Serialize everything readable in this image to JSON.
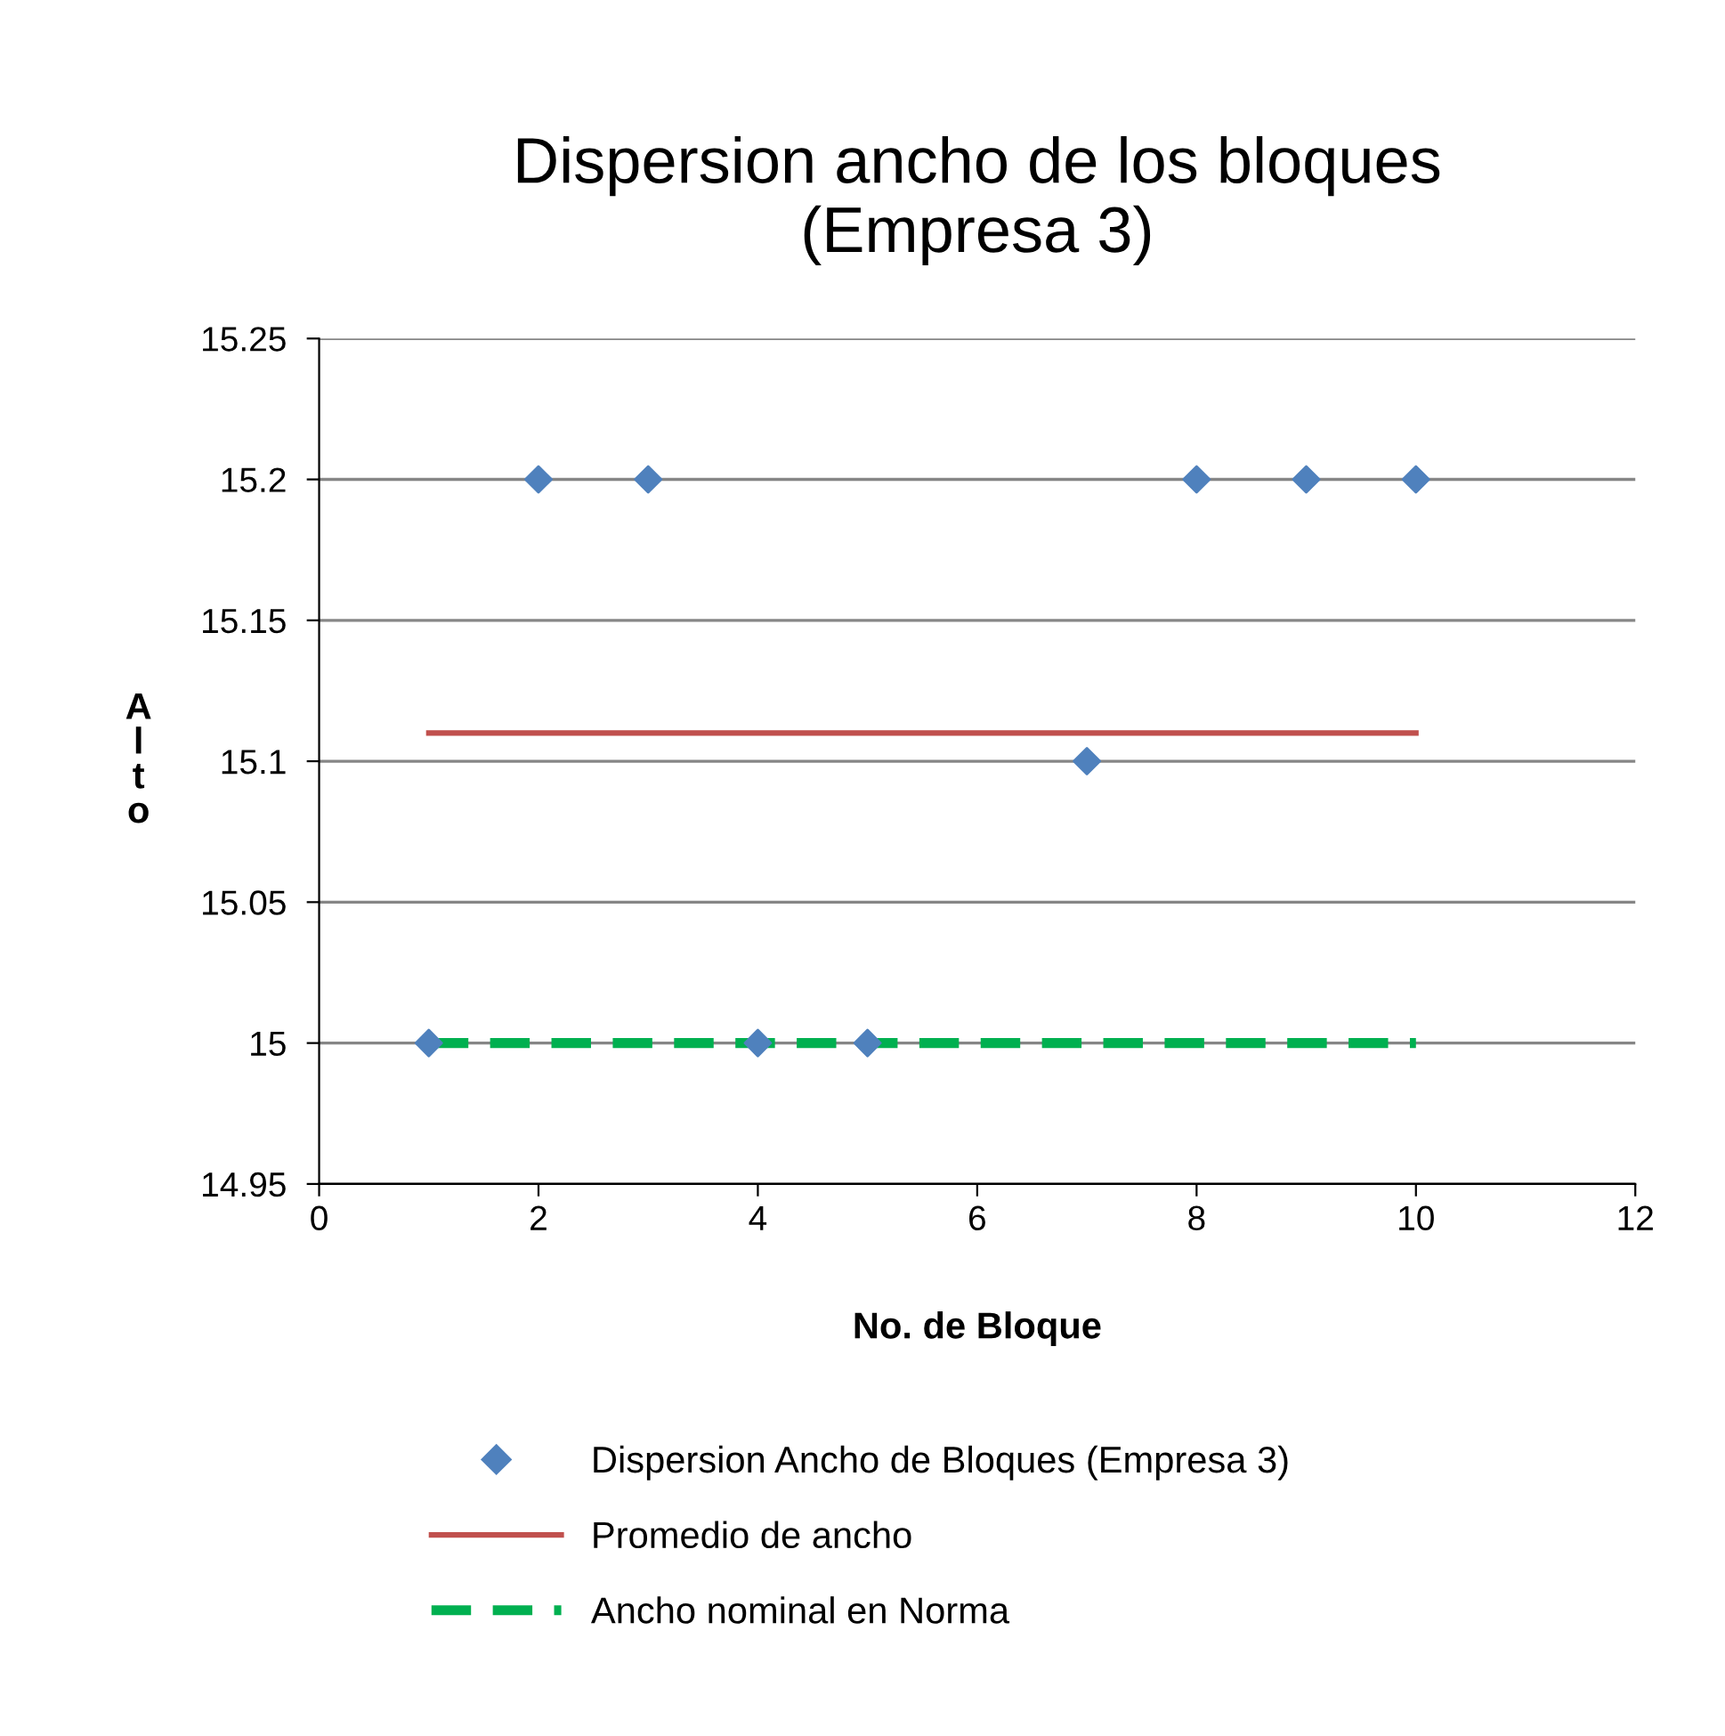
{
  "chart_data": {
    "type": "scatter",
    "title": "Dispersion ancho de los bloques\n(Empresa 3)",
    "xlabel": "No. de Bloque",
    "ylabel": "Alto",
    "x": [
      1,
      2,
      3,
      4,
      5,
      6,
      7,
      8,
      9,
      10
    ],
    "series": [
      {
        "name": "Dispersion Ancho de Bloques (Empresa 3)",
        "color": "#4f81bd",
        "marker": "diamond",
        "values": [
          15,
          15.2,
          15.2,
          15,
          15,
          null,
          15.1,
          15.2,
          15.2,
          15.2
        ]
      },
      {
        "name": "Promedio de ancho",
        "type": "line",
        "color": "#c0504d",
        "line_style": "solid",
        "values": [
          15.11,
          15.11,
          15.11,
          15.11,
          15.11,
          15.11,
          15.11,
          15.11,
          15.11,
          15.11
        ]
      },
      {
        "name": "Ancho nominal en Norma",
        "type": "line",
        "color": "#00b050",
        "line_style": "dashed",
        "values": [
          15,
          15,
          15,
          15,
          15,
          15,
          15,
          15,
          15,
          15
        ]
      }
    ],
    "xlim": [
      0,
      12
    ],
    "xticks": [
      0,
      2,
      4,
      6,
      8,
      10,
      12
    ],
    "ylim": [
      14.95,
      15.25
    ],
    "yticks": [
      14.95,
      15,
      15.05,
      15.1,
      15.15,
      15.2,
      15.25
    ],
    "grid": "y",
    "legend": "bottom"
  }
}
